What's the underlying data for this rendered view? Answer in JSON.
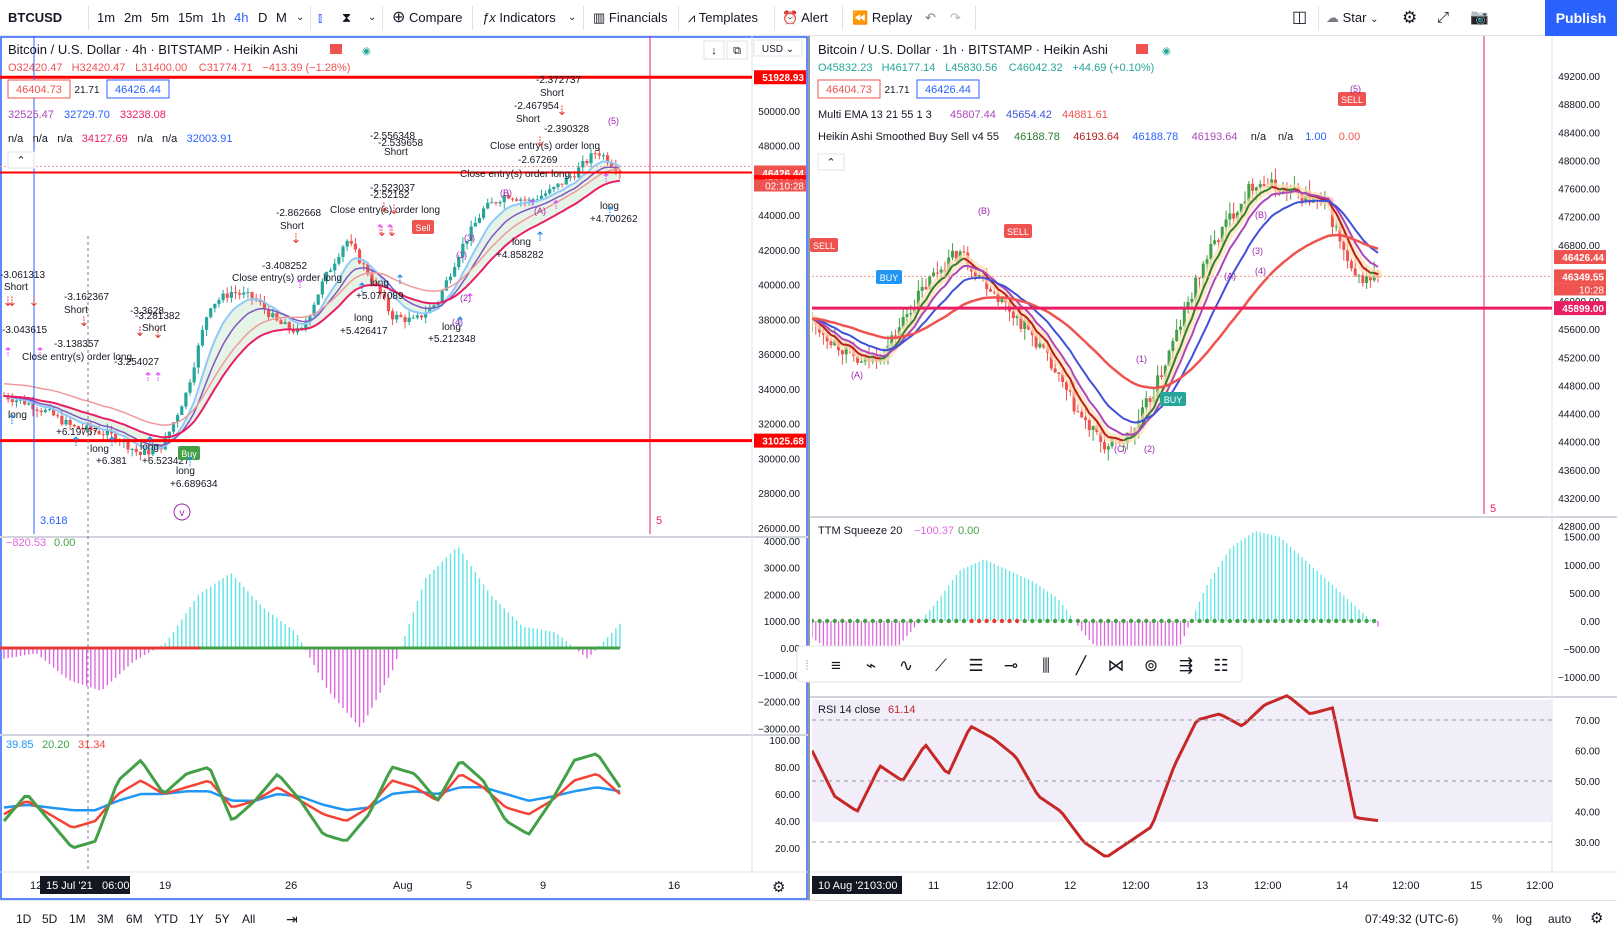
{
  "toolbar": {
    "symbol": "BTCUSD",
    "intervals": [
      "1m",
      "2m",
      "5m",
      "15m",
      "1h",
      "4h",
      "D",
      "M"
    ],
    "active_interval": "4h",
    "compare": "Compare",
    "indicators": "Indicators",
    "financials": "Financials",
    "templates": "Templates",
    "alert": "Alert",
    "replay": "Replay",
    "star": "Star",
    "publish": "Publish"
  },
  "bottom": {
    "ranges": [
      "1D",
      "5D",
      "1M",
      "3M",
      "6M",
      "YTD",
      "1Y",
      "5Y",
      "All"
    ],
    "time": "07:49:32 (UTC-6)",
    "pct": "%",
    "log": "log",
    "auto": "auto"
  },
  "left": {
    "title": "Bitcoin / U.S. Dollar · 4h · BITSTAMP · Heikin Ashi",
    "ohlc": {
      "o": "O32420.47",
      "h": "H32420.47",
      "l": "L31400.00",
      "c": "C31774.71",
      "chg": "−413.39 (−1.28%)"
    },
    "bid": "46404.73",
    "spread": "21.71",
    "ask": "46426.44",
    "line2": [
      "32525.47",
      "32729.70",
      "33238.08"
    ],
    "line3": [
      "n/a",
      "n/a",
      "n/a",
      "34127.69",
      "n/a",
      "n/a",
      "32003.91"
    ],
    "currency": "USD",
    "price_axis": [
      "50000.00",
      "48000.00",
      "46000.00",
      "44000.00",
      "42000.00",
      "40000.00",
      "38000.00",
      "36000.00",
      "34000.00",
      "32000.00",
      "30000.00",
      "28000.00",
      "26000.00"
    ],
    "price_tags": [
      "51928.93",
      "46449.86",
      "02:10:28",
      "46426.44",
      "45899.00",
      "31025.68"
    ],
    "macd_label": [
      "−820.53",
      "0.00"
    ],
    "macd_axis": [
      "4000.00",
      "3000.00",
      "2000.00",
      "1000.00",
      "0.00",
      "−1000.00",
      "−2000.00",
      "−3000.00"
    ],
    "rsi_label": [
      "39.85",
      "20.20",
      "31.34"
    ],
    "rsi_axis": [
      "100.00",
      "80.00",
      "60.00",
      "40.00",
      "20.00"
    ],
    "time_axis": [
      "12",
      "15 Jul '21",
      "06:00",
      "19",
      "26",
      "Aug",
      "5",
      "9",
      "16"
    ],
    "left_value": "3.618",
    "marker5": "5",
    "circle_v": "v",
    "annotations": [
      "-3.061313",
      "Short",
      "-3.162367",
      "Short",
      "-3.3628",
      "-3.281382",
      "Short",
      "-2.862668",
      "Short",
      "-3.408252",
      "Close entry(s) order long",
      "-2.556348",
      "-2.539658",
      "Short",
      "-2.523037",
      "-2.52152",
      "Close entry(s) order long",
      "-2.467954",
      "Short",
      "-2.390328",
      "Close entry(s) order long",
      "-2.372737",
      "Short",
      "-2.67269",
      "Close entry(s) order long",
      "long",
      "+6.19767",
      "long",
      "+6.381",
      "long",
      "+6.523427",
      "long",
      "+6.689634",
      "long",
      "+5.426417",
      "long",
      "+5.077089",
      "long",
      "+5.212348",
      "long",
      "+4.858282",
      "long",
      "+4.700262",
      "-3.043615",
      "-3.138357",
      "-3.254027",
      "Close entry(s) order long",
      "Sell",
      "Buy",
      "(A)",
      "(B)",
      "(5)",
      "(4)",
      "(3)",
      "(1)",
      "(2)"
    ]
  },
  "right": {
    "title": "Bitcoin / U.S. Dollar · 1h · BITSTAMP · Heikin Ashi",
    "ohlc": {
      "o": "O45832.23",
      "h": "H46177.14",
      "l": "L45830.56",
      "c": "C46042.32",
      "chg": "+44.69 (+0.10%)"
    },
    "bid": "46404.73",
    "spread": "21.71",
    "ask": "46426.44",
    "ema_label": "Multi EMA 13 21 55 1 3",
    "ema_vals": [
      "45807.44",
      "45654.42",
      "44881.61"
    ],
    "ha_label": "Heikin Ashi Smoothed Buy Sell v4 55",
    "ha_vals": [
      "46188.78",
      "46193.64",
      "46188.78",
      "46193.64",
      "n/a",
      "n/a",
      "1.00",
      "0.00"
    ],
    "price_axis": [
      "49200.00",
      "48800.00",
      "48400.00",
      "48000.00",
      "47600.00",
      "47200.00",
      "46800.00",
      "46400.00",
      "46000.00",
      "45600.00",
      "45200.00",
      "44800.00",
      "44400.00",
      "44000.00",
      "43600.00",
      "43200.00",
      "42800.00"
    ],
    "price_tags": [
      "46426.44",
      "46349.55",
      "10:28",
      "45899.00"
    ],
    "ttm_label": "TTM Squeeze 20",
    "ttm_vals": [
      "−100.37",
      "0.00"
    ],
    "ttm_axis": [
      "1500.00",
      "1000.00",
      "500.00",
      "0.00",
      "−500.00",
      "−1000.00"
    ],
    "rsi_label": "RSI 14 close",
    "rsi_val": "61.14",
    "rsi_axis": [
      "70.00",
      "60.00",
      "50.00",
      "40.00",
      "30.00"
    ],
    "time_axis": [
      "10 Aug '21",
      "03:00",
      "11",
      "12:00",
      "12",
      "12:00",
      "13",
      "12:00",
      "14",
      "12:00",
      "15",
      "12:00"
    ],
    "marker5": "5",
    "annotations": [
      "SELL",
      "SELL",
      "SELL",
      "BUY",
      "BUY",
      "(5)",
      "(4)",
      "(3)",
      "(B)",
      "(A)",
      "(C)",
      "(2)",
      "(1)",
      "(B)",
      "(A)"
    ]
  },
  "colors": {
    "up": "#26a69a",
    "down": "#ef5350",
    "accent": "#2962ff",
    "red_line": "#ff0000",
    "cyan": "#5ee6e6",
    "magenta": "#e066e0",
    "green": "#43a047",
    "purple": "#ab47bc",
    "blue": "#3f51d8",
    "rsi_red": "#c62828"
  },
  "chart_data": [
    {
      "type": "line",
      "title": "Bitcoin / U.S. Dollar · 4h · BITSTAMP · Heikin Ashi",
      "x": [
        "12",
        "15 Jul '21",
        "19",
        "26",
        "Aug",
        "5",
        "9",
        "16"
      ],
      "series": [
        {
          "values": [
            33200,
            31800,
            30200,
            39500,
            39000,
            37800,
            44500,
            46400
          ]
        }
      ],
      "ylim": [
        26000,
        52000
      ],
      "xlabel": "",
      "ylabel": ""
    },
    {
      "type": "line",
      "title": "Bitcoin / U.S. Dollar · 1h · BITSTAMP · Heikin Ashi",
      "x": [
        "10 Aug '21",
        "11",
        "12:00",
        "12",
        "12:00",
        "13",
        "12:00",
        "14",
        "12:00"
      ],
      "series": [
        {
          "values": [
            45600,
            45300,
            46700,
            45800,
            43800,
            44200,
            47700,
            47600,
            46350
          ]
        }
      ],
      "ylim": [
        42800,
        49200
      ],
      "xlabel": "",
      "ylabel": ""
    }
  ]
}
